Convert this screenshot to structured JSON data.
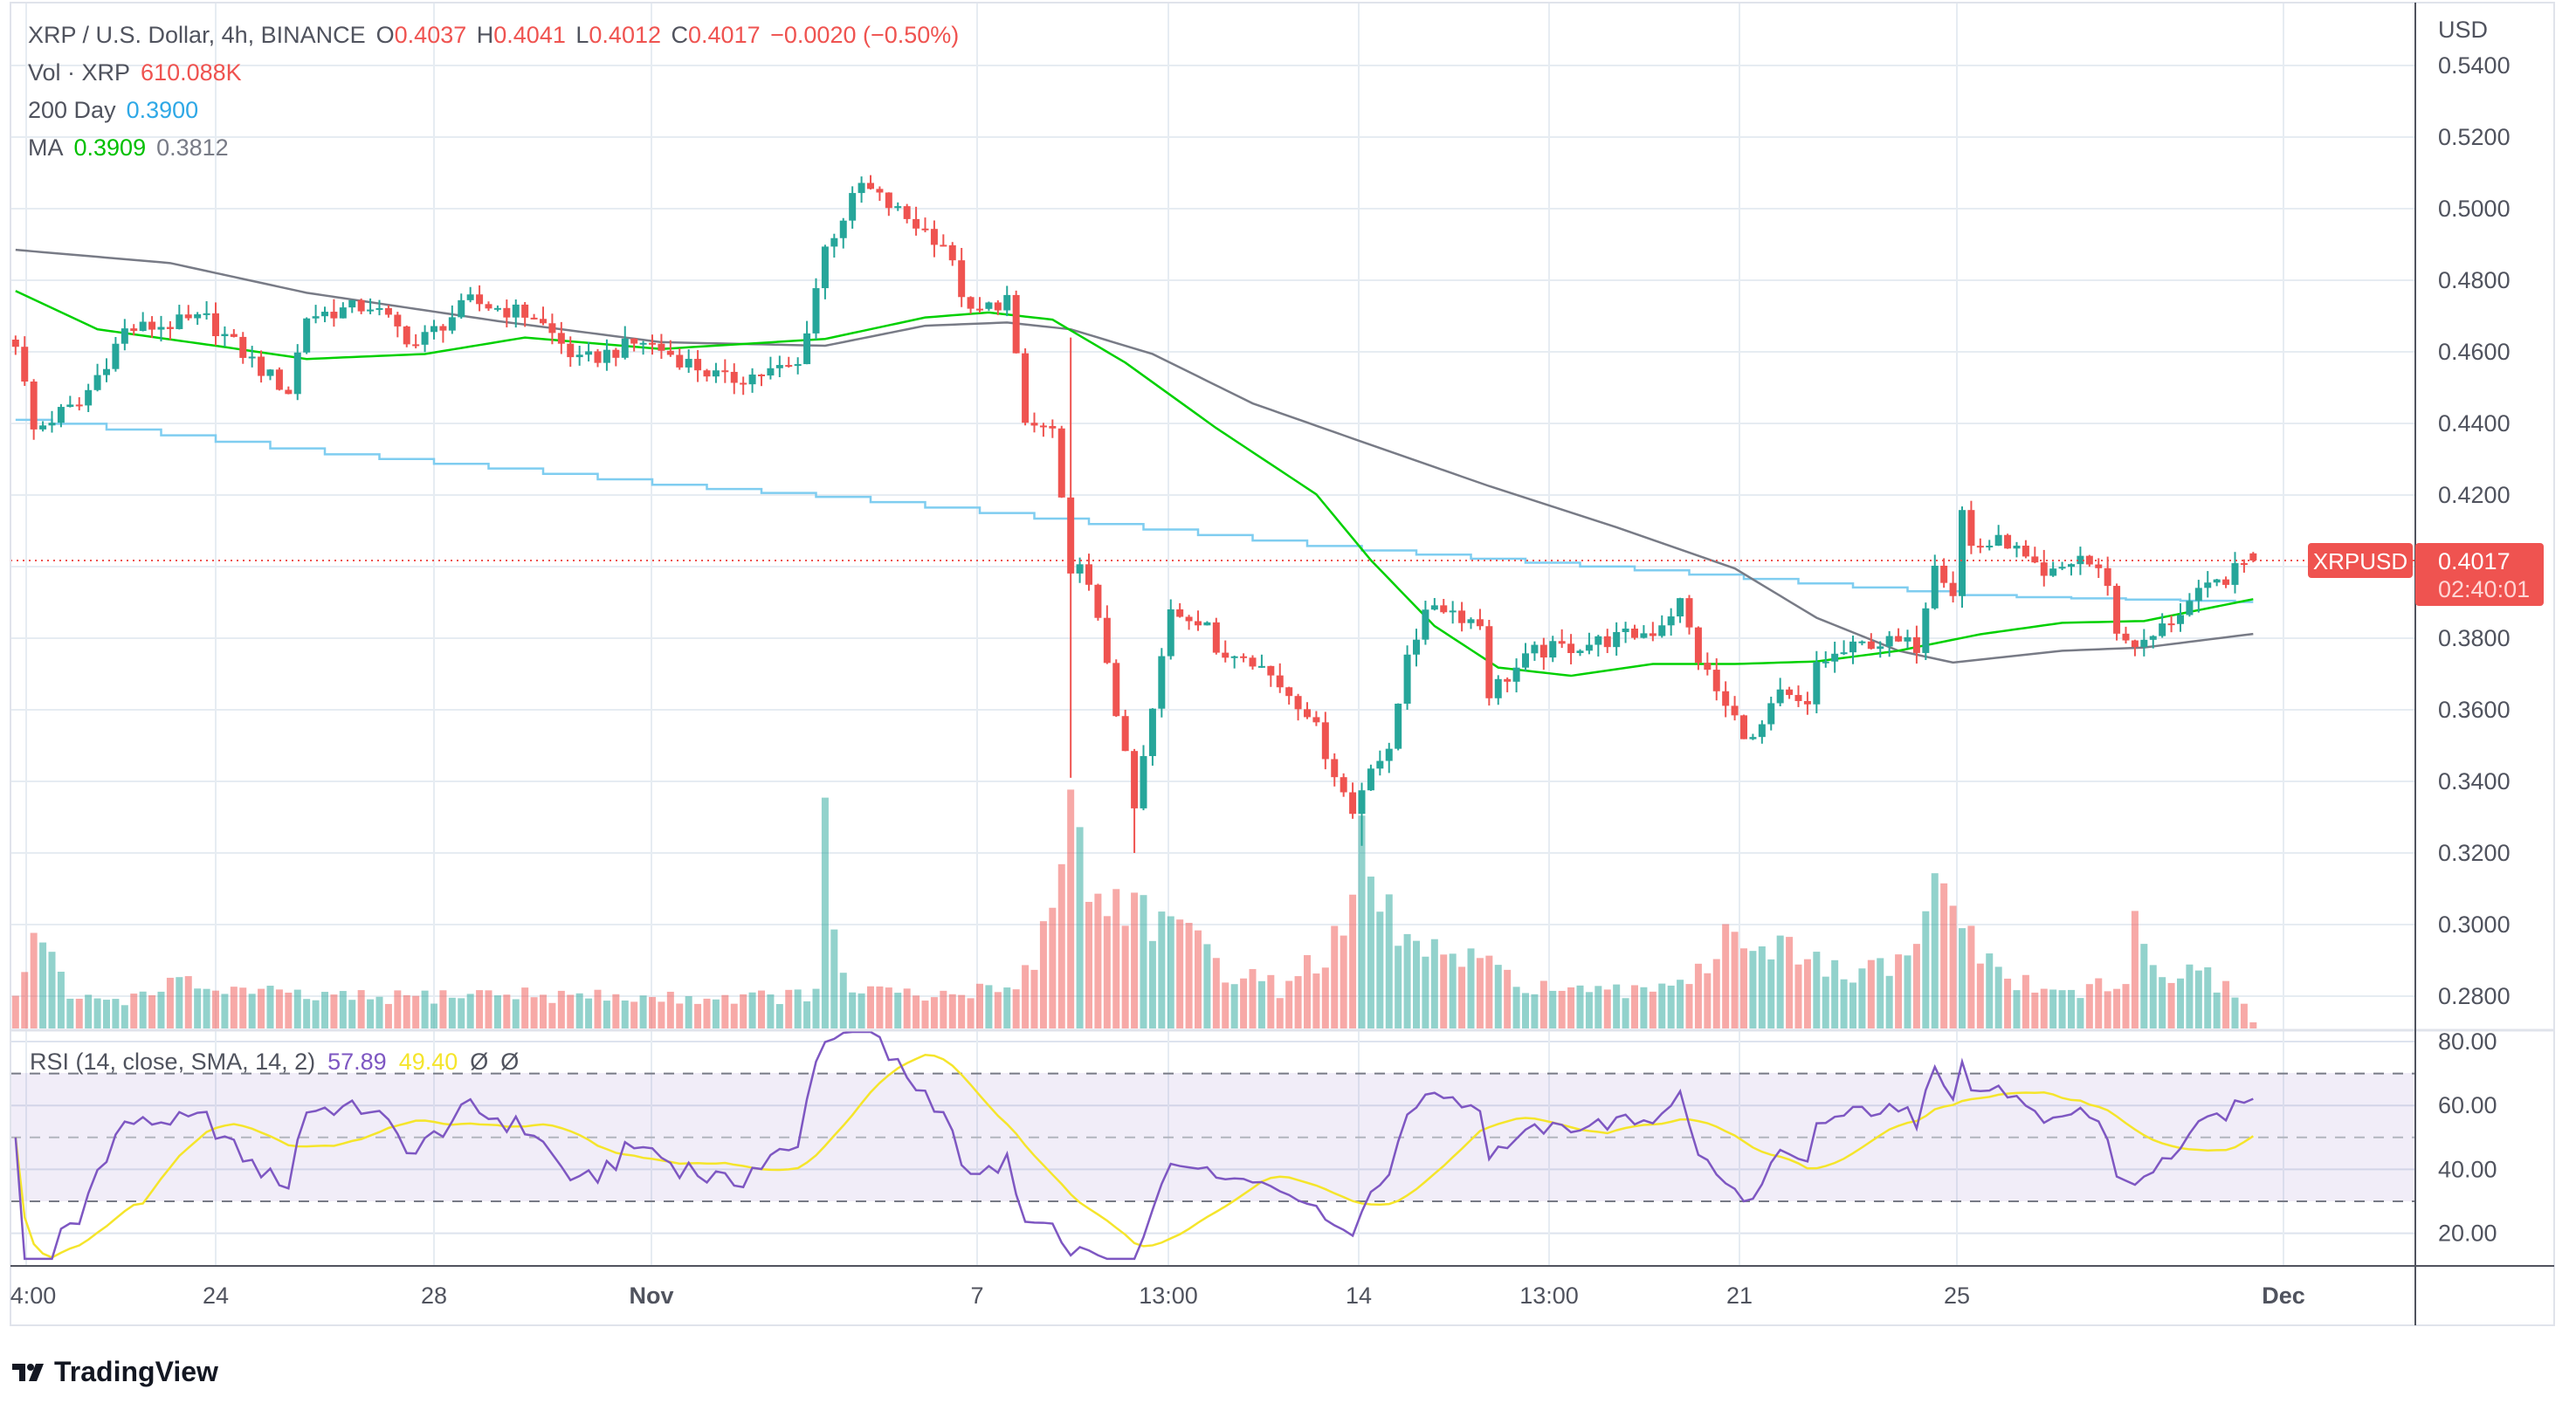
{
  "header": {
    "symbol_line": "XRP / U.S. Dollar, 4h, BINANCE",
    "open_label": "O",
    "open": "0.4037",
    "high_label": "H",
    "high": "0.4041",
    "low_label": "L",
    "low": "0.4012",
    "close_label": "C",
    "close": "0.4017",
    "change": "−0.0020 (−0.50%)",
    "volume_label": "Vol · XRP",
    "volume": "610.088K",
    "day200_label": "200 Day",
    "day200": "0.3900",
    "ma_label": "MA",
    "ma_fast": "0.3909",
    "ma_slow": "0.3812"
  },
  "rsi_legend": {
    "label": "RSI (14, close, SMA, 14, 2)",
    "rsi": "57.89",
    "rsi_ma": "49.40",
    "na1": "Ø",
    "na2": "Ø"
  },
  "price_axis": {
    "currency": "USD",
    "labels": [
      "0.5400",
      "0.5200",
      "0.5000",
      "0.4800",
      "0.4600",
      "0.4400",
      "0.4200",
      "0.3800",
      "0.3600",
      "0.3400",
      "0.3200",
      "0.3000",
      "0.2800"
    ]
  },
  "rsi_axis": {
    "labels": [
      "80.00",
      "60.00",
      "40.00",
      "20.00"
    ]
  },
  "time_axis": {
    "labels": [
      "4:00",
      "24",
      "28",
      "Nov",
      "7",
      "13:00",
      "14",
      "13:00",
      "21",
      "25",
      "Dec"
    ]
  },
  "last_price": {
    "symbol": "XRPUSD",
    "price": "0.4017",
    "countdown": "02:40:01"
  },
  "brand": {
    "name": "TradingView"
  },
  "colors": {
    "up": "#26a69a",
    "down": "#ef5350",
    "ma_fast": "#00d000",
    "ma_slow": "#787b86",
    "day200": "#7fcdf0",
    "rsi": "#7e57c2",
    "rsi_ma": "#f5e52b",
    "legend_blue": "#2ea8e6"
  },
  "chart_data": {
    "type": "candlestick",
    "interval": "4h",
    "first_bar": "Oct 20 08:00",
    "last_bar": "Nov 30 08:00",
    "ylim": [
      0.27,
      0.545
    ],
    "grid": true,
    "close_path": [
      [
        "Oct 20 08:00",
        0.463
      ],
      [
        "Oct 20 16:00",
        0.438
      ],
      [
        "Oct 21 04:00",
        0.443
      ],
      [
        "Oct 21 12:00",
        0.445
      ],
      [
        "Oct 22 08:00",
        0.466
      ],
      [
        "Oct 23 20:00",
        0.469
      ],
      [
        "Oct 24 20:00",
        0.455
      ],
      [
        "Oct 25 08:00",
        0.449
      ],
      [
        "Oct 25 16:00",
        0.47
      ],
      [
        "Oct 26 20:00",
        0.473
      ],
      [
        "Oct 27 16:00",
        0.462
      ],
      [
        "Oct 28 16:00",
        0.474
      ],
      [
        "Oct 29 20:00",
        0.47
      ],
      [
        "Oct 30 16:00",
        0.457
      ],
      [
        "Oct 31 20:00",
        0.463
      ],
      [
        "Nov 2 08:00",
        0.452
      ],
      [
        "Nov 3 16:00",
        0.456
      ],
      [
        "Nov 4 04:00",
        0.489
      ],
      [
        "Nov 4 20:00",
        0.5066
      ],
      [
        "Nov 5 12:00",
        0.499
      ],
      [
        "Nov 6 08:00",
        0.4905
      ],
      [
        "Nov 6 20:00",
        0.47
      ],
      [
        "Nov 7 12:00",
        0.475
      ],
      [
        "Nov 7 20:00",
        0.4398
      ],
      [
        "Nov 8 08:00",
        0.438
      ],
      [
        "Nov 8 16:00",
        0.396
      ],
      [
        "Nov 8 20:00",
        0.403
      ],
      [
        "Nov 9 08:00",
        0.374
      ],
      [
        "Nov 9 20:00",
        0.332
      ],
      [
        "Nov 10 12:00",
        0.3876
      ],
      [
        "Nov 11 04:00",
        0.385
      ],
      [
        "Nov 11 08:00",
        0.374
      ],
      [
        "Nov 11 20:00",
        0.377
      ],
      [
        "Nov 12 12:00",
        0.367
      ],
      [
        "Nov 13 00:00",
        0.36
      ],
      [
        "Nov 13 20:00",
        0.331
      ],
      [
        "Nov 14 04:00",
        0.3456
      ],
      [
        "Nov 14 12:00",
        0.347
      ],
      [
        "Nov 14 20:00",
        0.3768
      ],
      [
        "Nov 15 08:00",
        0.39
      ],
      [
        "Nov 16 04:00",
        0.384
      ],
      [
        "Nov 16 08:00",
        0.365
      ],
      [
        "Nov 17 04:00",
        0.376
      ],
      [
        "Nov 18 08:00",
        0.379
      ],
      [
        "Nov 19 08:00",
        0.382
      ],
      [
        "Nov 19 20:00",
        0.39
      ],
      [
        "Nov 20 04:00",
        0.3744
      ],
      [
        "Nov 20 16:00",
        0.3605
      ],
      [
        "Nov 21 04:00",
        0.351
      ],
      [
        "Nov 21 16:00",
        0.364
      ],
      [
        "Nov 22 04:00",
        0.36
      ],
      [
        "Nov 22 08:00",
        0.373
      ],
      [
        "Nov 23 08:00",
        0.379
      ],
      [
        "Nov 24 04:00",
        0.378
      ],
      [
        "Nov 24 12:00",
        0.4024
      ],
      [
        "Nov 24 20:00",
        0.393
      ],
      [
        "Nov 25 00:00",
        0.4156
      ],
      [
        "Nov 25 04:00",
        0.4056
      ],
      [
        "Nov 25 20:00",
        0.407
      ],
      [
        "Nov 26 12:00",
        0.396
      ],
      [
        "Nov 27 04:00",
        0.403
      ],
      [
        "Nov 27 16:00",
        0.396
      ],
      [
        "Nov 27 20:00",
        0.3808
      ],
      [
        "Nov 28 08:00",
        0.378
      ],
      [
        "Nov 29 04:00",
        0.39
      ],
      [
        "Nov 29 20:00",
        0.397
      ],
      [
        "Nov 30 08:00",
        0.4017
      ]
    ],
    "wick_extremes": [
      {
        "bar": "Nov 4 20:00",
        "high": 0.509
      },
      {
        "bar": "Nov 8 16:00",
        "high": 0.464,
        "low": 0.341
      },
      {
        "bar": "Nov 9 20:00",
        "low": 0.32
      },
      {
        "bar": "Nov 14 00:00",
        "low": 0.322
      }
    ],
    "volume_k_path": [
      [
        "Oct 20 08:00",
        3000
      ],
      [
        "Oct 20 16:00",
        9300
      ],
      [
        "Oct 21 00:00",
        6500
      ],
      [
        "Oct 21 08:00",
        3000
      ],
      [
        "Oct 22 12:00",
        3000
      ],
      [
        "Oct 23 00:00",
        4500
      ],
      [
        "Oct 25 12:00",
        3200
      ],
      [
        "Oct 27 00:00",
        3000
      ],
      [
        "Oct 29 00:00",
        3500
      ],
      [
        "Nov 1 00:00",
        3000
      ],
      [
        "Nov 3 12:00",
        3200
      ],
      [
        "Nov 4 00:00",
        3500
      ],
      [
        "Nov 4 04:00",
        20000
      ],
      [
        "Nov 4 08:00",
        8000
      ],
      [
        "Nov 4 16:00",
        4000
      ],
      [
        "Nov 6 00:00",
        3000
      ],
      [
        "Nov 7 12:00",
        4000
      ],
      [
        "Nov 8 00:00",
        7000
      ],
      [
        "Nov 8 08:00",
        12000
      ],
      [
        "Nov 8 16:00",
        25700
      ],
      [
        "Nov 9 00:00",
        12000
      ],
      [
        "Nov 9 12:00",
        13000
      ],
      [
        "Nov 10 00:00",
        12000
      ],
      [
        "Nov 10 12:00",
        10000
      ],
      [
        "Nov 11 12:00",
        6000
      ],
      [
        "Nov 12 12:00",
        4000
      ],
      [
        "Nov 13 16:00",
        9000
      ],
      [
        "Nov 14 00:00",
        17000
      ],
      [
        "Nov 14 08:00",
        12000
      ],
      [
        "Nov 15 00:00",
        8000
      ],
      [
        "Nov 16 00:00",
        6500
      ],
      [
        "Nov 17 00:00",
        4500
      ],
      [
        "Nov 18 00:00",
        3500
      ],
      [
        "Nov 19 00:00",
        3500
      ],
      [
        "Nov 20 12:00",
        6500
      ],
      [
        "Nov 20 16:00",
        12400
      ],
      [
        "Nov 21 00:00",
        9000
      ],
      [
        "Nov 22 00:00",
        7000
      ],
      [
        "Nov 23 00:00",
        5000
      ],
      [
        "Nov 24 04:00",
        7000
      ],
      [
        "Nov 24 12:00",
        14300
      ],
      [
        "Nov 25 00:00",
        11300
      ],
      [
        "Nov 25 12:00",
        6000
      ],
      [
        "Nov 26 12:00",
        3500
      ],
      [
        "Nov 27 12:00",
        4000
      ],
      [
        "Nov 28 00:00",
        4000
      ],
      [
        "Nov 28 04:00",
        12200
      ],
      [
        "Nov 28 12:00",
        5500
      ],
      [
        "Nov 29 12:00",
        5000
      ],
      [
        "Nov 30 04:00",
        3000
      ],
      [
        "Nov 30 08:00",
        610
      ]
    ],
    "ma_fast_path": [
      [
        "Oct 20 08:00",
        0.477
      ],
      [
        "Oct 21 20:00",
        0.4663
      ],
      [
        "Oct 24 00:00",
        0.4617
      ],
      [
        "Oct 25 16:00",
        0.458
      ],
      [
        "Oct 27 20:00",
        0.4594
      ],
      [
        "Oct 29 16:00",
        0.464
      ],
      [
        "Nov 1 04:00",
        0.4608
      ],
      [
        "Nov 4 04:00",
        0.4636
      ],
      [
        "Nov 6 00:00",
        0.4696
      ],
      [
        "Nov 7 04:00",
        0.471
      ],
      [
        "Nov 8 08:00",
        0.469
      ],
      [
        "Nov 9 16:00",
        0.457
      ],
      [
        "Nov 11 08:00",
        0.4387
      ],
      [
        "Nov 13 04:00",
        0.4202
      ],
      [
        "Nov 14 04:00",
        0.4018
      ],
      [
        "Nov 15 08:00",
        0.3834
      ],
      [
        "Nov 16 12:00",
        0.3718
      ],
      [
        "Nov 17 20:00",
        0.3695
      ],
      [
        "Nov 19 08:00",
        0.3728
      ],
      [
        "Nov 20 20:00",
        0.3728
      ],
      [
        "Nov 22 08:00",
        0.3735
      ],
      [
        "Nov 23 20:00",
        0.3765
      ],
      [
        "Nov 25 08:00",
        0.3811
      ],
      [
        "Nov 26 20:00",
        0.3843
      ],
      [
        "Nov 28 08:00",
        0.3848
      ],
      [
        "Nov 30 08:00",
        0.3909
      ]
    ],
    "ma_slow_path": [
      [
        "Oct 20 08:00",
        0.4885
      ],
      [
        "Oct 23 04:00",
        0.4848
      ],
      [
        "Oct 25 16:00",
        0.4765
      ],
      [
        "Oct 29 04:00",
        0.4686
      ],
      [
        "Nov 1 04:00",
        0.4627
      ],
      [
        "Nov 4 04:00",
        0.4617
      ],
      [
        "Nov 6 00:00",
        0.4673
      ],
      [
        "Nov 7 12:00",
        0.4682
      ],
      [
        "Nov 8 16:00",
        0.4663
      ],
      [
        "Nov 10 04:00",
        0.4594
      ],
      [
        "Nov 12 00:00",
        0.4456
      ],
      [
        "Nov 14 04:00",
        0.434
      ],
      [
        "Nov 16 08:00",
        0.4225
      ],
      [
        "Nov 18 16:00",
        0.411
      ],
      [
        "Nov 20 20:00",
        0.3995
      ],
      [
        "Nov 22 08:00",
        0.3857
      ],
      [
        "Nov 23 20:00",
        0.3765
      ],
      [
        "Nov 24 20:00",
        0.3732
      ],
      [
        "Nov 26 20:00",
        0.3765
      ],
      [
        "Nov 28 08:00",
        0.3774
      ],
      [
        "Nov 30 08:00",
        0.3812
      ]
    ],
    "day200_path": [
      [
        "Oct 20 08:00",
        0.441
      ],
      [
        "Oct 23 04:00",
        0.4364
      ],
      [
        "Oct 25 16:00",
        0.4318
      ],
      [
        "Oct 29 04:00",
        0.4272
      ],
      [
        "Nov 1 04:00",
        0.4226
      ],
      [
        "Nov 4 04:00",
        0.4193
      ],
      [
        "Nov 7 04:00",
        0.4147
      ],
      [
        "Nov 10 04:00",
        0.4101
      ],
      [
        "Nov 13 04:00",
        0.4055
      ],
      [
        "Nov 16 08:00",
        0.4018
      ],
      [
        "Nov 19 08:00",
        0.3986
      ],
      [
        "Nov 22 08:00",
        0.3949
      ],
      [
        "Nov 25 08:00",
        0.3917
      ],
      [
        "Nov 30 08:00",
        0.39
      ]
    ],
    "rsi": {
      "length": 14,
      "source": "close",
      "ma_type": "SMA",
      "ma_length": 14,
      "upper_band": 70,
      "middle": 50,
      "lower_band": 30,
      "ylim": [
        10,
        83
      ]
    }
  }
}
